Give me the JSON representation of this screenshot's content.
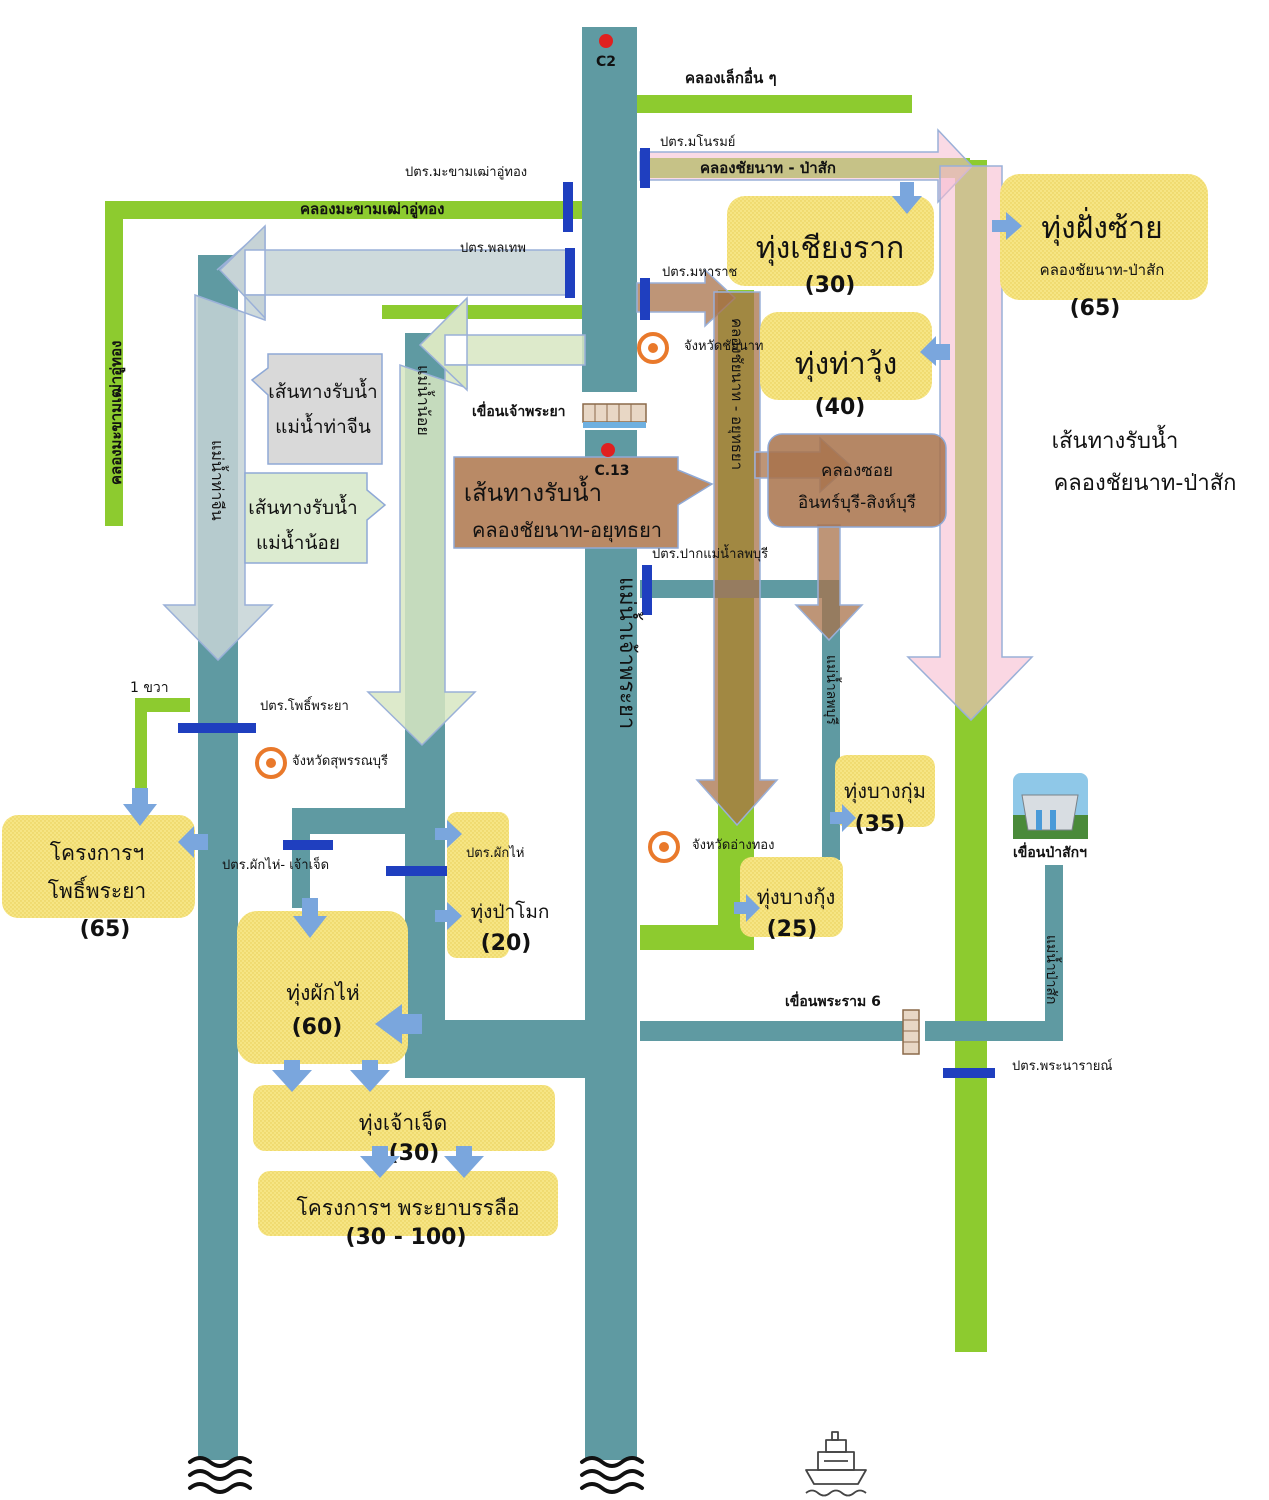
{
  "colors": {
    "river": "#5f9aa2",
    "canal_green": "#8dcb2f",
    "gate": "#1f3fbf",
    "field": "#f4e27a",
    "brown_route": "#a8724a",
    "pink_route": "#f6bcd0",
    "grey_route": "#c6d3d6",
    "lightgreen_route": "#d7e6c2",
    "arrow_blue": "#7aa6dd",
    "province_marker": "#e9792b",
    "station_marker": "#e02020"
  },
  "stations": {
    "c2": "C2",
    "c13": "C.13"
  },
  "canals": {
    "other_small": "คลองเล็กอื่น ๆ",
    "chainat_pasak": "คลองชัยนาท - ป่าสัก",
    "makham_top": "คลองมะขามเฒ่าอู่ทอง",
    "makham_side": "คลองมะขามเฒ่าอู่ทอง",
    "chainat_ayutthaya_v": "คลองชัยนาท - อยุทธยา",
    "soi": "คลองซอย",
    "inburi": "อินทร์บุรี-สิงห์บุรี"
  },
  "rivers": {
    "tha_chin": "แม่น้ำท่าจีน",
    "noi": "แม่น้ำน้อย",
    "chao_phraya": "แม่น้ำเจ้าพระยา",
    "lopburi": "แม่น้ำลพบุรี",
    "pasak": "แม่น้ำป่าสัก"
  },
  "gates": {
    "manorom": "ปตร.มโนรมย์",
    "makham": "ปตร.มะขามเฒ่าอู่ทอง",
    "pholathep": "ปตร.พลเทพ",
    "maharat": "ปตร.มหาราช",
    "pak_lopburi": "ปตร.ปากแม่น้ำลพบุรี",
    "phophraya": "ปตร.โพธิ์พระยา",
    "phak_hai_chet": "ปตร.ผักไห่- เจ้าเจ็ด",
    "phak_hai": "ปตร.ผักไห่",
    "phra_narai": "ปตร.พระนารายณ์",
    "one_right": "1 ขวา"
  },
  "dams": {
    "chao_phraya": "เขื่อนเจ้าพระยา",
    "pasak": "เขื่อนป่าสักฯ",
    "rama6": "เขื่อนพระราม 6"
  },
  "provinces": {
    "chainat": "จังหวัดชัยนาท",
    "suphanburi": "จังหวัดสุพรรณบุรี",
    "angthong": "จังหวัดอ่างทอง"
  },
  "routes": {
    "tha_chin": {
      "line1": "เส้นทางรับน้ำ",
      "line2": "แม่น้ำท่าจีน"
    },
    "noi": {
      "line1": "เส้นทางรับน้ำ",
      "line2": "แม่น้ำน้อย"
    },
    "chainat_ayutthaya": {
      "line1": "เส้นทางรับน้ำ",
      "line2": "คลองชัยนาท-อยุทธยา"
    },
    "chainat_pasak": {
      "line1": "เส้นทางรับน้ำ",
      "line2": "คลองชัยนาท-ป่าสัก"
    }
  },
  "fields": {
    "chiang_rak": {
      "name": "ทุ่งเชียงราก",
      "value": "(30)"
    },
    "left_bank": {
      "name": "ทุ่งฝั่งซ้าย",
      "sub": "คลองชัยนาท-ป่าสัก",
      "value": "(65)"
    },
    "tha_wung": {
      "name": "ทุ่งท่าวุ้ง",
      "value": "(40)"
    },
    "bang_kum": {
      "name": "ทุ่งบางกุ่ม",
      "value": "(35)"
    },
    "bang_kung": {
      "name": "ทุ่งบางกุ้ง",
      "value": "(25)"
    },
    "phophraya_project": {
      "name1": "โครงการฯ",
      "name2": "โพธิ์พระยา",
      "value": "(65)"
    },
    "pa_mok": {
      "name": "ทุ่งป่าโมก",
      "value": "(20)"
    },
    "phak_hai": {
      "name": "ทุ่งผักไห่",
      "value": "(60)"
    },
    "chao_chet": {
      "name": "ทุ่งเจ้าเจ็ด",
      "value": "(30)"
    },
    "borommathat": {
      "name": "โครงการฯ พระยาบรรลือ",
      "value": "(30 - 100)"
    }
  },
  "icons": [
    "sea-waves-icon",
    "ship-icon",
    "dam-icon",
    "weir-icon",
    "province-marker-icon",
    "station-marker-icon"
  ]
}
